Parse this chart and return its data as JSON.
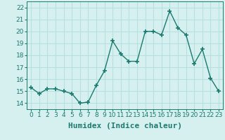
{
  "x": [
    0,
    1,
    2,
    3,
    4,
    5,
    6,
    7,
    8,
    9,
    10,
    11,
    12,
    13,
    14,
    15,
    16,
    17,
    18,
    19,
    20,
    21,
    22,
    23
  ],
  "y": [
    15.3,
    14.8,
    15.2,
    15.2,
    15.0,
    14.8,
    14.0,
    14.1,
    15.5,
    16.7,
    19.2,
    18.1,
    17.5,
    17.5,
    20.0,
    20.0,
    19.7,
    21.7,
    20.3,
    19.7,
    17.3,
    18.5,
    16.1,
    15.0
  ],
  "line_color": "#1a7a6e",
  "marker": "+",
  "marker_size": 4,
  "xlabel": "Humidex (Indice chaleur)",
  "xlim": [
    -0.5,
    23.5
  ],
  "ylim": [
    13.5,
    22.5
  ],
  "yticks": [
    14,
    15,
    16,
    17,
    18,
    19,
    20,
    21,
    22
  ],
  "xtick_labels": [
    "0",
    "1",
    "2",
    "3",
    "4",
    "5",
    "6",
    "7",
    "8",
    "9",
    "10",
    "11",
    "12",
    "13",
    "14",
    "15",
    "16",
    "17",
    "18",
    "19",
    "20",
    "21",
    "22",
    "23"
  ],
  "bg_color": "#d6f0f0",
  "grid_color": "#b8dede",
  "tick_color": "#1a7a6e",
  "tick_fontsize": 6.5,
  "xlabel_fontsize": 8,
  "line_width": 1.0
}
